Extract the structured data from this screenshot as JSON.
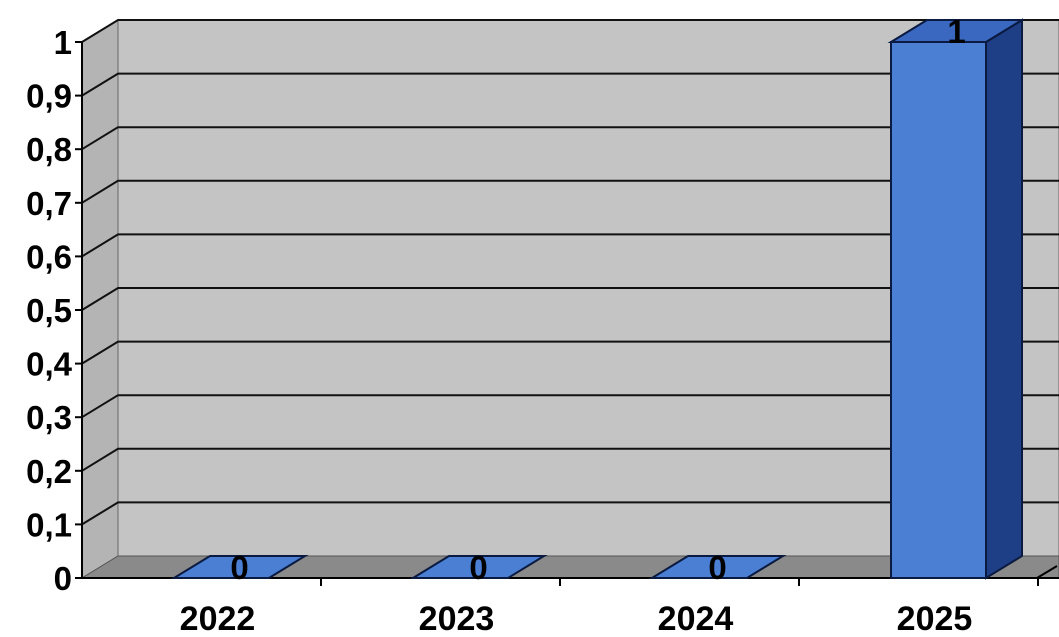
{
  "chart_data": {
    "type": "bar",
    "style": "3d-column",
    "categories": [
      "2022",
      "2023",
      "2024",
      "2025"
    ],
    "values": [
      0,
      0,
      0,
      1
    ],
    "data_labels": [
      "0",
      "0",
      "0",
      "1"
    ],
    "ylim": [
      0,
      1
    ],
    "yticks": [
      "0",
      "0,1",
      "0,2",
      "0,3",
      "0,4",
      "0,5",
      "0,6",
      "0,7",
      "0,8",
      "0,9",
      "1"
    ],
    "grid": true,
    "legend": "none",
    "title": "",
    "xlabel": "",
    "ylabel": ""
  },
  "colors": {
    "bar_front": "#4a7fd4",
    "bar_side": "#1e3f85",
    "bar_top": "#3a68c0",
    "wall": "#c4c4c4",
    "floor": "#8a8a8a",
    "gridline": "#111111"
  }
}
